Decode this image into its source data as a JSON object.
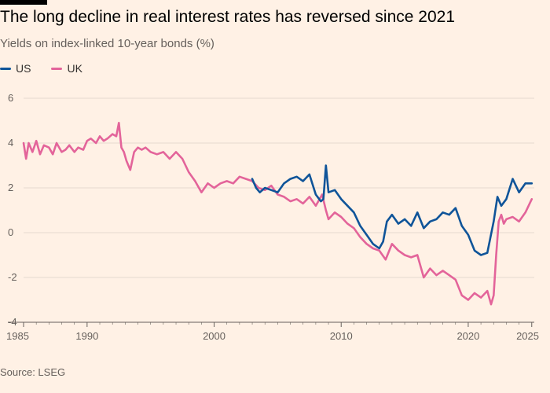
{
  "header": {
    "title": "The long decline in real interest rates has reversed since 2021",
    "subtitle": "Yields on index-linked 10-year bonds (%)"
  },
  "source": "Source: LSEG",
  "colors": {
    "us": "#0f5499",
    "uk": "#e3649a",
    "grid": "#e6d9ce",
    "axis": "#66605c"
  },
  "chart_data": {
    "type": "line",
    "title": "The long decline in real interest rates has reversed since 2021",
    "subtitle": "Yields on index-linked 10-year bonds (%)",
    "xlabel": "",
    "ylabel": "",
    "xlim": [
      1985,
      2025.2
    ],
    "ylim": [
      -4,
      6
    ],
    "yticks": [
      6,
      4,
      2,
      0,
      -2,
      -4
    ],
    "ytick_labels": [
      "6",
      "4",
      "2",
      "0",
      "-2",
      "-4"
    ],
    "xticks": [
      1985,
      1990,
      2000,
      2010,
      2020,
      2025
    ],
    "xtick_labels": [
      "1985",
      "1990",
      "2000",
      "2010",
      "2020",
      "2025"
    ],
    "legend": "top-left",
    "series": [
      {
        "name": "UK",
        "color": "#e3649a",
        "x": [
          1985.0,
          1985.2,
          1985.4,
          1985.7,
          1986.0,
          1986.3,
          1986.6,
          1987.0,
          1987.3,
          1987.6,
          1988.0,
          1988.3,
          1988.6,
          1989.0,
          1989.3,
          1989.7,
          1990.0,
          1990.3,
          1990.7,
          1991.0,
          1991.3,
          1991.6,
          1992.0,
          1992.3,
          1992.5,
          1992.7,
          1992.9,
          1993.1,
          1993.4,
          1993.7,
          1994.0,
          1994.3,
          1994.6,
          1995.0,
          1995.5,
          1996.0,
          1996.5,
          1997.0,
          1997.5,
          1998.0,
          1998.5,
          1999.0,
          1999.5,
          2000.0,
          2000.5,
          2001.0,
          2001.5,
          2002.0,
          2002.5,
          2003.0,
          2003.5,
          2004.0,
          2004.5,
          2005.0,
          2005.5,
          2006.0,
          2006.5,
          2007.0,
          2007.5,
          2008.0,
          2008.5,
          2008.8,
          2009.0,
          2009.5,
          2010.0,
          2010.5,
          2011.0,
          2011.5,
          2012.0,
          2012.5,
          2013.0,
          2013.5,
          2014.0,
          2014.5,
          2015.0,
          2015.5,
          2016.0,
          2016.5,
          2017.0,
          2017.5,
          2018.0,
          2018.5,
          2019.0,
          2019.5,
          2020.0,
          2020.5,
          2021.0,
          2021.5,
          2021.8,
          2022.0,
          2022.2,
          2022.4,
          2022.6,
          2022.8,
          2023.0,
          2023.5,
          2024.0,
          2024.5,
          2025.0
        ],
        "values": [
          4.0,
          3.3,
          4.0,
          3.6,
          4.1,
          3.5,
          3.9,
          3.8,
          3.5,
          4.0,
          3.6,
          3.7,
          3.9,
          3.6,
          3.8,
          3.7,
          4.1,
          4.2,
          4.0,
          4.3,
          4.1,
          4.2,
          4.4,
          4.3,
          4.9,
          3.8,
          3.6,
          3.2,
          2.8,
          3.6,
          3.8,
          3.7,
          3.8,
          3.6,
          3.5,
          3.6,
          3.3,
          3.6,
          3.3,
          2.7,
          2.3,
          1.8,
          2.2,
          2.0,
          2.2,
          2.3,
          2.2,
          2.5,
          2.4,
          2.3,
          2.0,
          1.9,
          2.1,
          1.7,
          1.6,
          1.4,
          1.5,
          1.3,
          1.6,
          1.2,
          1.7,
          1.0,
          0.6,
          0.9,
          0.7,
          0.4,
          0.2,
          -0.2,
          -0.5,
          -0.7,
          -0.8,
          -1.2,
          -0.5,
          -0.8,
          -1.0,
          -1.1,
          -1.0,
          -2.0,
          -1.6,
          -1.9,
          -1.7,
          -1.9,
          -2.1,
          -2.8,
          -3.0,
          -2.7,
          -2.9,
          -2.6,
          -3.2,
          -2.8,
          -1.0,
          0.5,
          0.8,
          0.4,
          0.6,
          0.7,
          0.5,
          0.9,
          1.5
        ]
      },
      {
        "name": "US",
        "color": "#0f5499",
        "x": [
          2003.0,
          2003.3,
          2003.6,
          2004.0,
          2004.5,
          2005.0,
          2005.5,
          2006.0,
          2006.5,
          2007.0,
          2007.5,
          2008.0,
          2008.4,
          2008.6,
          2008.8,
          2009.0,
          2009.5,
          2010.0,
          2010.5,
          2011.0,
          2011.5,
          2012.0,
          2012.5,
          2013.0,
          2013.3,
          2013.6,
          2014.0,
          2014.5,
          2015.0,
          2015.5,
          2016.0,
          2016.5,
          2017.0,
          2017.5,
          2018.0,
          2018.5,
          2019.0,
          2019.5,
          2020.0,
          2020.5,
          2021.0,
          2021.5,
          2022.0,
          2022.3,
          2022.6,
          2023.0,
          2023.5,
          2024.0,
          2024.5,
          2025.0
        ],
        "values": [
          2.4,
          2.0,
          1.8,
          2.0,
          1.9,
          1.8,
          2.2,
          2.4,
          2.5,
          2.3,
          2.6,
          1.7,
          1.4,
          1.5,
          3.0,
          1.8,
          1.9,
          1.5,
          1.2,
          0.9,
          0.3,
          -0.1,
          -0.5,
          -0.7,
          -0.4,
          0.5,
          0.8,
          0.4,
          0.6,
          0.3,
          0.9,
          0.2,
          0.5,
          0.6,
          0.9,
          0.8,
          1.1,
          0.3,
          -0.1,
          -0.8,
          -1.0,
          -0.9,
          0.5,
          1.6,
          1.2,
          1.5,
          2.4,
          1.8,
          2.2,
          2.2
        ]
      }
    ]
  }
}
